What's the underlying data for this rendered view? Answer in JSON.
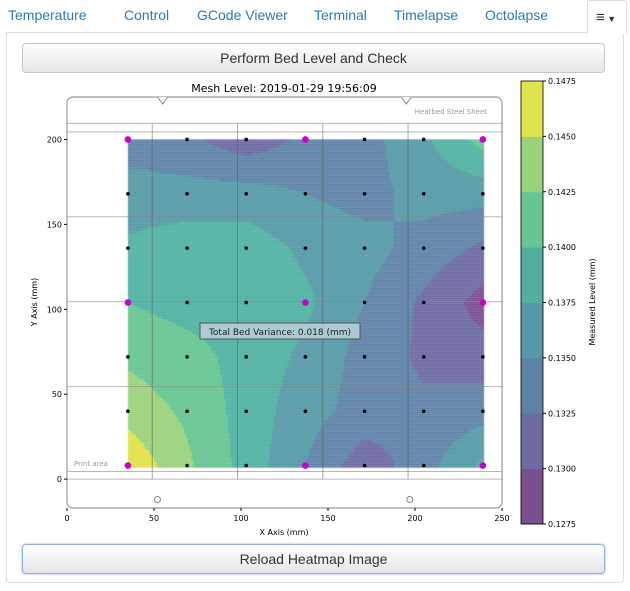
{
  "tabs": [
    {
      "label": "Temperature"
    },
    {
      "label": "Control"
    },
    {
      "label": "GCode Viewer"
    },
    {
      "label": "Terminal"
    },
    {
      "label": "Timelapse"
    },
    {
      "label": "Octolapse"
    }
  ],
  "menu_icon": "hamburger-menu-icon",
  "buttons": {
    "perform": "Perform Bed Level and Check",
    "reload": "Reload Heatmap Image"
  },
  "chart_data": {
    "type": "heatmap",
    "title": "Mesh Level: 2019-01-29 19:56:09",
    "xlabel": "X Axis (mm)",
    "ylabel": "Y Axis (mm)",
    "colorbar_label": "Measured Level (mm)",
    "xlim": [
      0,
      250
    ],
    "ylim": [
      -17,
      225
    ],
    "xticks": [
      0,
      50,
      100,
      150,
      200,
      250
    ],
    "yticks": [
      0,
      50,
      100,
      150,
      200
    ],
    "colorbar_ticks": [
      "0.1275",
      "0.1300",
      "0.1325",
      "0.1350",
      "0.1375",
      "0.1400",
      "0.1425",
      "0.1450",
      "0.1475"
    ],
    "levels": [
      0.1275,
      0.13,
      0.1325,
      0.135,
      0.1375,
      0.14,
      0.1425,
      0.145,
      0.1475
    ],
    "level_colors": [
      "#7a4f8e",
      "#6c6aa0",
      "#5e82a6",
      "#5799a6",
      "#52b0a0",
      "#67c493",
      "#9ad27c",
      "#dfe34c"
    ],
    "grid_x": [
      35,
      69,
      103,
      137,
      171,
      205,
      239
    ],
    "grid_y": [
      200,
      168,
      136,
      104,
      72,
      40,
      8
    ],
    "z": [
      [
        0.134,
        0.133,
        0.131,
        0.133,
        0.134,
        0.137,
        0.141
      ],
      [
        0.136,
        0.136,
        0.136,
        0.135,
        0.134,
        0.136,
        0.136
      ],
      [
        0.138,
        0.139,
        0.139,
        0.137,
        0.136,
        0.134,
        0.132
      ],
      [
        0.14,
        0.139,
        0.139,
        0.138,
        0.135,
        0.132,
        0.129
      ],
      [
        0.142,
        0.141,
        0.139,
        0.137,
        0.134,
        0.132,
        0.131
      ],
      [
        0.144,
        0.142,
        0.139,
        0.136,
        0.134,
        0.133,
        0.134
      ],
      [
        0.147,
        0.143,
        0.139,
        0.135,
        0.131,
        0.134,
        0.138
      ]
    ],
    "probe_highlight_color": "#cc00cc",
    "annotation": "Total Bed Variance: 0.018 (mm)",
    "bed_label": "Heatbed Steel Sheet",
    "print_area_label": "Print area"
  }
}
